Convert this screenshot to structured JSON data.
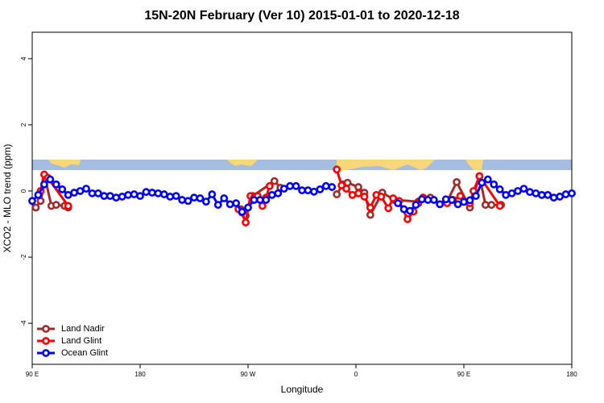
{
  "chart_data": {
    "type": "line",
    "title": "15N-20N February (Ver 10)   2015-01-01 to 2020-12-18",
    "x_label": "Longitude",
    "y_label": "XCO2 - MLO trend (ppm)",
    "xlim": [
      90,
      540
    ],
    "ylim": [
      -5.24,
      4.8
    ],
    "xticks": [
      {
        "value": 90,
        "label": "90 E"
      },
      {
        "value": 180,
        "label": "180"
      },
      {
        "value": 270,
        "label": "90 W"
      },
      {
        "value": 360,
        "label": "0"
      },
      {
        "value": 450,
        "label": "90 E"
      },
      {
        "value": 540,
        "label": "180"
      }
    ],
    "yticks": [
      -4,
      -2,
      0,
      2,
      4
    ],
    "legend": "bottom-left",
    "series": [
      {
        "name": "Land Nadir",
        "color": "#a52a2a",
        "x": [
          93,
          97,
          101,
          106,
          110,
          117,
          120,
          null,
          264,
          268,
          274,
          292,
          297,
          null,
          344,
          349,
          353,
          362,
          367,
          372,
          382,
          392,
          412,
          416,
          422,
          null,
          436,
          444,
          455,
          463,
          468,
          473,
          481
        ],
        "values": [
          -0.5,
          -0.3,
          0.35,
          -0.45,
          -0.42,
          -0.45,
          -0.5,
          null,
          -0.55,
          -0.75,
          -0.15,
          0.3,
          0.1,
          null,
          -0.1,
          0.2,
          0.25,
          0.12,
          -0.05,
          -0.72,
          -0.05,
          -0.27,
          -0.32,
          -0.2,
          -0.2,
          null,
          -0.32,
          0.27,
          -0.5,
          0.45,
          -0.42,
          -0.42,
          -0.42
        ]
      },
      {
        "name": "Land Glint",
        "color": "#ff0000",
        "x": [
          97,
          100,
          103,
          120,
          null,
          262,
          265,
          268,
          272,
          275,
          278,
          282,
          285,
          288,
          null,
          344,
          348,
          352,
          357,
          362,
          367,
          372,
          377,
          381,
          387,
          391,
          396,
          403,
          408,
          412,
          416,
          null,
          436,
          441,
          447,
          455,
          458,
          463,
          480
        ],
        "values": [
          0.0,
          0.5,
          0.4,
          -0.45,
          null,
          -0.55,
          -0.65,
          -0.95,
          -0.15,
          -0.2,
          -0.15,
          -0.45,
          -0.2,
          0.15,
          null,
          0.65,
          0.17,
          0.07,
          -0.12,
          -0.07,
          -0.17,
          -0.5,
          -0.12,
          -0.17,
          -0.52,
          -0.22,
          -0.3,
          -0.85,
          -0.62,
          -0.37,
          -0.2,
          null,
          -0.37,
          -0.27,
          -0.15,
          -0.37,
          0.0,
          0.45,
          -0.45
        ]
      },
      {
        "name": "Ocean Glint",
        "color": "#0000ff",
        "x": [
          90,
          95,
          100,
          105,
          110,
          115,
          120,
          125,
          130,
          135,
          140,
          145,
          150,
          155,
          160,
          165,
          170,
          175,
          180,
          185,
          190,
          195,
          200,
          205,
          210,
          215,
          220,
          225,
          230,
          235,
          240,
          245,
          250,
          255,
          260,
          265,
          270,
          275,
          280,
          285,
          290,
          295,
          300,
          305,
          310,
          315,
          320,
          325,
          330,
          335,
          340,
          null,
          395,
          400,
          405,
          410,
          415,
          420,
          425,
          430,
          435,
          440,
          445,
          450,
          455,
          460,
          465,
          470,
          475,
          480,
          485,
          490,
          495,
          500,
          505,
          510,
          515,
          520,
          525,
          530,
          535,
          540
        ],
        "values": [
          -0.3,
          -0.12,
          0.2,
          0.35,
          0.2,
          0.05,
          -0.12,
          -0.05,
          0.0,
          0.07,
          -0.07,
          -0.07,
          -0.15,
          -0.15,
          -0.2,
          -0.17,
          -0.12,
          -0.1,
          -0.15,
          -0.03,
          -0.05,
          -0.07,
          -0.1,
          -0.17,
          -0.15,
          -0.27,
          -0.3,
          -0.2,
          -0.22,
          -0.32,
          -0.1,
          -0.42,
          -0.22,
          -0.4,
          -0.37,
          -0.63,
          -0.5,
          -0.27,
          -0.27,
          -0.27,
          -0.12,
          -0.07,
          0.07,
          0.15,
          0.15,
          0.02,
          0.02,
          -0.02,
          0.05,
          0.15,
          0.12,
          null,
          -0.37,
          -0.55,
          -0.6,
          -0.42,
          -0.25,
          -0.27,
          -0.27,
          -0.4,
          -0.25,
          -0.27,
          -0.4,
          -0.33,
          -0.28,
          -0.15,
          0.25,
          0.35,
          0.2,
          0.05,
          -0.12,
          -0.07,
          0.0,
          0.07,
          -0.03,
          -0.07,
          -0.12,
          -0.12,
          -0.2,
          -0.17,
          -0.1,
          -0.07
        ]
      }
    ]
  }
}
